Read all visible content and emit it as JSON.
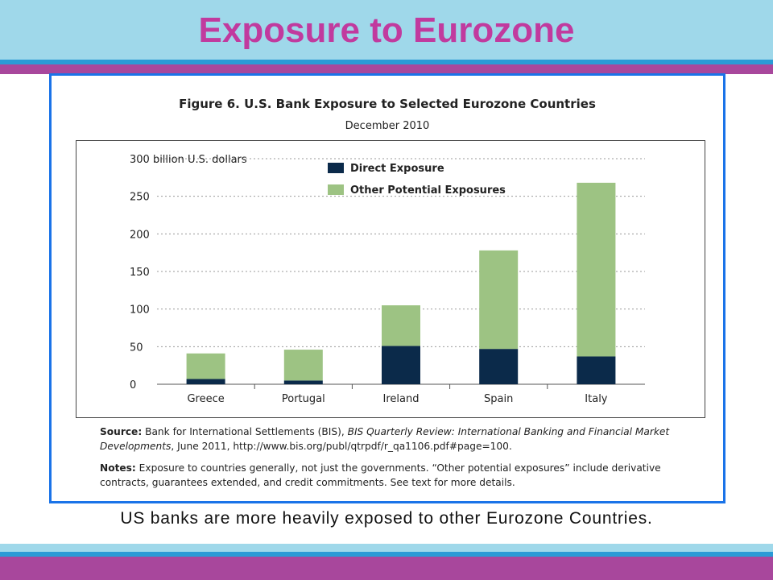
{
  "slide": {
    "title": "Exposure to Eurozone",
    "caption": "US banks are more heavily exposed to other Eurozone Countries."
  },
  "figure": {
    "title": "Figure 6. U.S. Bank Exposure to Selected Eurozone Countries",
    "subtitle": "December 2010",
    "source_label": "Source:",
    "source_text_1": " Bank for International Settlements (BIS), ",
    "source_italic": "BIS Quarterly Review: International Banking and Financial Market Developments",
    "source_text_2": ", June 2011, http://www.bis.org/publ/qtrpdf/r_qa1106.pdf#page=100.",
    "notes_label": "Notes:",
    "notes_text": " Exposure to countries generally, not just the governments. “Other potential exposures” include derivative contracts, guarantees extended, and credit commitments. See text for more details."
  },
  "colors": {
    "header_bg": "#9fd8ea",
    "accent_blue": "#2a9ad6",
    "accent_purple": "#a8479c",
    "title_color": "#c13a9e",
    "frame_border": "#1a73e8",
    "direct_color": "#0b2a4a",
    "other_color": "#9dc383"
  },
  "chart_data": {
    "type": "bar",
    "stacked": true,
    "categories": [
      "Greece",
      "Portugal",
      "Ireland",
      "Spain",
      "Italy"
    ],
    "series": [
      {
        "name": "Direct Exposure",
        "values": [
          7,
          5,
          51,
          47,
          37
        ],
        "color": "#0b2a4a"
      },
      {
        "name": "Other Potential Exposures",
        "values": [
          34,
          41,
          54,
          131,
          231
        ],
        "color": "#9dc383"
      }
    ],
    "y_ticks": [
      "0",
      "50",
      "100",
      "150",
      "200",
      "250",
      "300 billion U.S. dollars"
    ],
    "y_tick_values": [
      0,
      50,
      100,
      150,
      200,
      250,
      300
    ],
    "ylim": [
      0,
      300
    ],
    "grid": true,
    "legend_position": "top-left"
  }
}
